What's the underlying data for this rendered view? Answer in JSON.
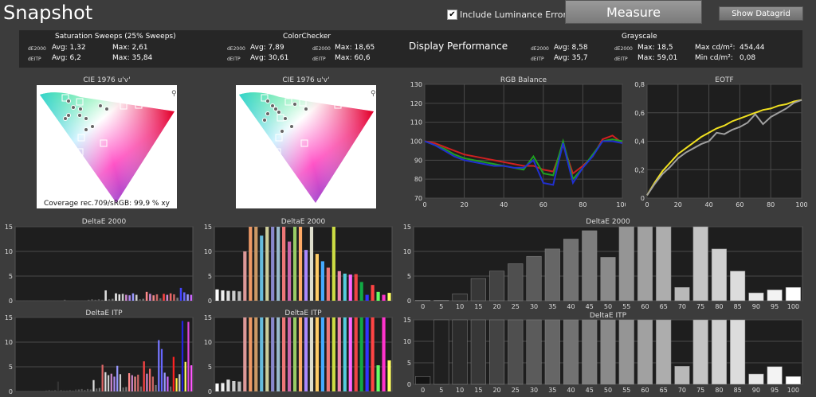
{
  "app": {
    "title": "Snapshot"
  },
  "toolbar": {
    "luminance_label": "Include Luminance Error",
    "luminance_checked": true,
    "measure_label": "Measure",
    "datagrid_label": "Show Datagrid"
  },
  "stats": {
    "saturation": {
      "title": "Saturation Sweeps (25% Sweeps)",
      "de2000_label": "dE2000",
      "deitp_label": "dEITP",
      "de2000_avg": "Avg: 1,32",
      "de2000_max": "Max: 2,61",
      "deitp_avg": "Avg: 6,2",
      "deitp_max": "Max: 35,84"
    },
    "colorchecker": {
      "title": "ColorChecker",
      "de2000_label": "dE2000",
      "deitp_label": "dEITP",
      "de2000_avg": "Avg: 7,89",
      "de2000_max": "Max: 18,65",
      "deitp_avg": "Avg: 30,61",
      "deitp_max": "Max: 60,6"
    },
    "display_performance": "Display Performance",
    "grayscale": {
      "title": "Grayscale",
      "de2000_label": "dE2000",
      "deitp_label": "dEITP",
      "de2000_avg": "Avg: 8,58",
      "de2000_max": "Max: 18,5",
      "deitp_avg": "Avg: 35,7",
      "deitp_max": "Max: 59,01",
      "max_cd_label": "Max cd/m²:",
      "max_cd": "454,44",
      "min_cd_label": "Min cd/m²:",
      "min_cd": "0,08"
    }
  },
  "cie": {
    "left_title": "CIE 1976 u'v'",
    "right_title": "CIE 1976 u'v'",
    "coverage": "Coverage rec.709/sRGB:  99,9 % xy",
    "search_icon": "magnifier-icon"
  },
  "colors": {
    "bg": "#3c3c3c",
    "plot_bg": "#1e1e1e",
    "grid": "#4a4a4a",
    "red": "#d02020",
    "green": "#20a020",
    "blue": "#2030d0",
    "yellow": "#f0e020",
    "gray": "#a0a0a0"
  },
  "chart_data": [
    {
      "id": "rgb",
      "type": "line",
      "title": "RGB Balance",
      "ylim": [
        70,
        130
      ],
      "xlim": [
        0,
        100
      ],
      "yticks": [
        "70",
        "80",
        "90",
        "100",
        "110",
        "120",
        "130"
      ],
      "xticks": [
        "0",
        "20",
        "40",
        "60",
        "80",
        "100"
      ],
      "x": [
        0,
        5,
        10,
        15,
        20,
        25,
        30,
        35,
        40,
        45,
        50,
        55,
        60,
        65,
        70,
        75,
        80,
        85,
        90,
        95,
        100
      ],
      "series": [
        {
          "color": "#d02020",
          "values": [
            100,
            99,
            97,
            95,
            93,
            92,
            91,
            90,
            89,
            88,
            87,
            87,
            85,
            84,
            98,
            83,
            87,
            92,
            101,
            103,
            99
          ]
        },
        {
          "color": "#20a020",
          "values": [
            100,
            98,
            96,
            93,
            91,
            90,
            89,
            88,
            87,
            86,
            85,
            92,
            83,
            82,
            100,
            80,
            86,
            93,
            100,
            101,
            100
          ]
        },
        {
          "color": "#2030d0",
          "values": [
            100,
            98,
            95,
            92,
            90,
            89,
            88,
            87,
            87,
            86,
            86,
            90,
            78,
            77,
            99,
            78,
            86,
            92,
            100,
            100,
            99
          ]
        }
      ]
    },
    {
      "id": "eotf",
      "type": "line",
      "title": "EOTF",
      "ylim": [
        0,
        0.8
      ],
      "xlim": [
        0,
        100
      ],
      "yticks": [
        "0",
        "0,2",
        "0,4",
        "0,6",
        "0,8"
      ],
      "xticks": [
        "0",
        "20",
        "40",
        "60",
        "80",
        "100"
      ],
      "x": [
        0,
        5,
        10,
        15,
        20,
        25,
        30,
        35,
        40,
        45,
        50,
        55,
        60,
        65,
        70,
        75,
        80,
        85,
        90,
        95,
        100
      ],
      "series": [
        {
          "color": "#f0e020",
          "values": [
            0.02,
            0.11,
            0.19,
            0.25,
            0.31,
            0.35,
            0.39,
            0.43,
            0.46,
            0.49,
            0.51,
            0.54,
            0.56,
            0.58,
            0.6,
            0.62,
            0.63,
            0.65,
            0.66,
            0.68,
            0.69
          ]
        },
        {
          "color": "#a0a0a0",
          "values": [
            0.02,
            0.1,
            0.17,
            0.22,
            0.28,
            0.32,
            0.35,
            0.38,
            0.4,
            0.46,
            0.45,
            0.48,
            0.5,
            0.53,
            0.59,
            0.52,
            0.57,
            0.6,
            0.63,
            0.67,
            0.69
          ]
        }
      ]
    },
    {
      "id": "sat2000",
      "type": "bar",
      "title": "DeltaE 2000",
      "ylim": [
        0,
        15
      ],
      "yticks": [
        "0",
        "5",
        "10",
        "15"
      ],
      "values": [
        0.1,
        0.1,
        0.1,
        0.1,
        0.1,
        0.1,
        0.1,
        0.1,
        0.1,
        0.1,
        0.1,
        0.1,
        0.1,
        0.1,
        0.2,
        0.1,
        0.1,
        0.1,
        0.1,
        0.1,
        0.1,
        0.2,
        0.3,
        0.2,
        0.3,
        0.2,
        2.1,
        0.3,
        0.4,
        1.5,
        1.3,
        1.4,
        1.2,
        1.1,
        1.5,
        1.2,
        0.3,
        0.4,
        1.8,
        1.4,
        1.1,
        1.3,
        0.5,
        1.4,
        1.2,
        1.5,
        1.3,
        0.6,
        2.6,
        1.7,
        1.3,
        1.2
      ],
      "colors": [
        "#444",
        "#444",
        "#444",
        "#444",
        "#444",
        "#444",
        "#444",
        "#444",
        "#444",
        "#444",
        "#444",
        "#444",
        "#444",
        "#444",
        "#555",
        "#444",
        "#444",
        "#444",
        "#444",
        "#444",
        "#444",
        "#555",
        "#555",
        "#555",
        "#555",
        "#555",
        "#ddd",
        "#666",
        "#777",
        "#eee",
        "#ddd",
        "#ccc",
        "#c8c",
        "#a8e",
        "#99f",
        "#ccc",
        "#666",
        "#777",
        "#f88",
        "#c8c",
        "#e88",
        "#c66",
        "#666",
        "#f44",
        "#c8c",
        "#e66",
        "#c66",
        "#777",
        "#44f",
        "#66f",
        "#99f",
        "#c6f"
      ]
    },
    {
      "id": "cc2000",
      "type": "bar",
      "title": "DeltaE 2000",
      "ylim": [
        0,
        15
      ],
      "yticks": [
        "0",
        "5",
        "10",
        "15"
      ],
      "values": [
        2.3,
        2.1,
        2.0,
        2.0,
        1.9,
        10.0,
        15.0,
        15.0,
        13.2,
        15.0,
        15.0,
        15.0,
        15.0,
        12.0,
        15.0,
        15.0,
        10.3,
        15.0,
        9.5,
        8.0,
        6.7,
        15.0,
        6.0,
        5.5,
        5.3,
        5.4,
        3.8,
        1.2,
        3.2,
        1.8,
        1.2,
        1.6
      ],
      "colors": [
        "#fff",
        "#eee",
        "#ddd",
        "#ccc",
        "#bbb",
        "#d99",
        "#e96",
        "#c96",
        "#6bd",
        "#cc9",
        "#88c",
        "#9bc",
        "#e77",
        "#c6a",
        "#9c6",
        "#fa6",
        "#a8f",
        "#ddc",
        "#fc6",
        "#4af",
        "#e77",
        "#cd4",
        "#e8a",
        "#5cd",
        "#f6f",
        "#e44",
        "#1a4",
        "#33f",
        "#f44",
        "#6f6",
        "#f3c",
        "#ff6"
      ]
    },
    {
      "id": "satITP",
      "type": "bar",
      "title": "DeltaE ITP",
      "ylim": [
        0,
        15
      ],
      "yticks": [
        "0",
        "5",
        "10",
        "15"
      ],
      "values": [
        0.1,
        0.1,
        0.1,
        0.1,
        0.1,
        0.1,
        0.1,
        0.1,
        0.1,
        0.1,
        0.2,
        0.3,
        0.2,
        0.3,
        2.0,
        0.3,
        0.2,
        0.2,
        0.3,
        0.2,
        0.4,
        0.4,
        0.5,
        0.3,
        0.5,
        0.4,
        2.3,
        0.6,
        0.7,
        5.4,
        3.9,
        3.3,
        3.6,
        3.0,
        5.2,
        3.5,
        0.8,
        0.9,
        3.7,
        3.3,
        3.0,
        3.4,
        1.0,
        6.1,
        3.6,
        4.6,
        3.0,
        1.3,
        10.4,
        8.6,
        3.8,
        3.0,
        1.0,
        7.0,
        2.7,
        3.5,
        14.3,
        6.0,
        14.1,
        5.3
      ],
      "colors": [
        "#444",
        "#444",
        "#444",
        "#444",
        "#444",
        "#444",
        "#444",
        "#444",
        "#444",
        "#444",
        "#444",
        "#444",
        "#444",
        "#444",
        "#333",
        "#444",
        "#444",
        "#444",
        "#444",
        "#444",
        "#444",
        "#555",
        "#555",
        "#555",
        "#555",
        "#555",
        "#ddd",
        "#666",
        "#777",
        "#d66",
        "#ddd",
        "#ccc",
        "#c8c",
        "#a8e",
        "#99f",
        "#ccc",
        "#666",
        "#777",
        "#f88",
        "#c8c",
        "#e88",
        "#c66",
        "#666",
        "#f44",
        "#c8c",
        "#e66",
        "#c66",
        "#777",
        "#77f",
        "#66f",
        "#99f",
        "#c6f",
        "#666",
        "#f22",
        "#fe4",
        "#ccc",
        "#22d",
        "#ff6",
        "#d4d",
        "#f5f"
      ]
    },
    {
      "id": "ccITP",
      "type": "bar",
      "title": "DeltaE ITP",
      "ylim": [
        0,
        15
      ],
      "yticks": [
        "0",
        "5",
        "10",
        "15"
      ],
      "values": [
        1.6,
        1.7,
        2.4,
        2.1,
        2.0,
        15.0,
        15.0,
        15.0,
        15.0,
        15.0,
        15.0,
        15.0,
        15.0,
        15.0,
        15.0,
        15.0,
        15.0,
        15.0,
        15.0,
        15.0,
        15.0,
        15.0,
        15.0,
        15.0,
        15.0,
        15.0,
        15.0,
        15.0,
        15.0,
        5.3,
        15.0,
        6.3
      ],
      "colors": [
        "#fff",
        "#eee",
        "#ddd",
        "#ccc",
        "#bbb",
        "#d99",
        "#e96",
        "#c96",
        "#6bd",
        "#cc9",
        "#88c",
        "#9bc",
        "#e77",
        "#c6a",
        "#9c6",
        "#fa6",
        "#a8f",
        "#ddc",
        "#fc6",
        "#4af",
        "#e77",
        "#cd4",
        "#e8a",
        "#5cd",
        "#f6f",
        "#e44",
        "#1a4",
        "#33f",
        "#f44",
        "#6f6",
        "#f3c",
        "#ff6"
      ]
    },
    {
      "id": "gs2000",
      "type": "bar",
      "title": "DeltaE 2000",
      "ylim": [
        0,
        15
      ],
      "yticks": [
        "0",
        "5",
        "10",
        "15"
      ],
      "categories": [
        "0",
        "5",
        "10",
        "15",
        "20",
        "25",
        "30",
        "35",
        "40",
        "45",
        "50",
        "55",
        "60",
        "65",
        "70",
        "75",
        "80",
        "85",
        "90",
        "95",
        "100"
      ],
      "values": [
        0.1,
        0.1,
        1.4,
        4.5,
        6.0,
        7.5,
        9.0,
        10.5,
        12.5,
        14.2,
        8.8,
        15.0,
        15.0,
        15.0,
        2.7,
        15.0,
        10.5,
        6.0,
        1.6,
        2.2,
        2.7
      ]
    },
    {
      "id": "gsITP",
      "type": "bar",
      "title": "DeltaE ITP",
      "ylim": [
        0,
        15
      ],
      "yticks": [
        "0",
        "5",
        "10",
        "15"
      ],
      "categories": [
        "0",
        "5",
        "10",
        "15",
        "20",
        "25",
        "30",
        "35",
        "40",
        "45",
        "50",
        "55",
        "60",
        "65",
        "70",
        "75",
        "80",
        "85",
        "90",
        "95",
        "100"
      ],
      "values": [
        1.8,
        15.0,
        15.0,
        15.0,
        15.0,
        15.0,
        15.0,
        15.0,
        15.0,
        15.0,
        15.0,
        15.0,
        15.0,
        15.0,
        4.2,
        15.0,
        15.0,
        15.0,
        2.4,
        4.1,
        1.8
      ]
    }
  ]
}
